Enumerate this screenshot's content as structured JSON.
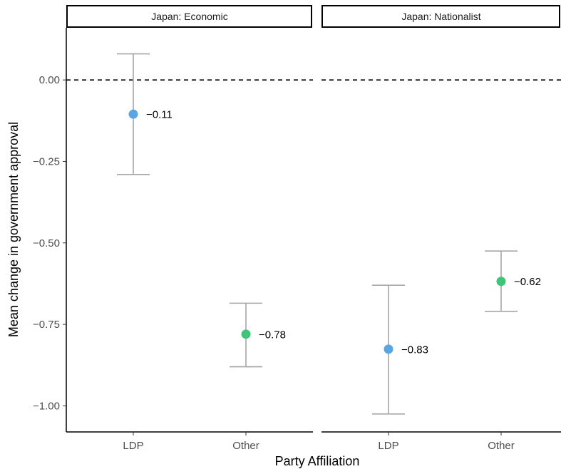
{
  "chart_data": {
    "type": "scatter",
    "subtype": "point-with-errorbars",
    "xlabel": "Party Affiliation",
    "ylabel": "Mean change in government approval",
    "ylim": [
      -1.08,
      0.16
    ],
    "yticks": [
      {
        "value": 0.0,
        "label": "0.00"
      },
      {
        "value": -0.25,
        "label": "-0.25"
      },
      {
        "value": -0.5,
        "label": "-0.50"
      },
      {
        "value": -0.75,
        "label": "-0.75"
      },
      {
        "value": -1.0,
        "label": "-1.00"
      }
    ],
    "reference_line": {
      "y": 0,
      "style": "dashed"
    },
    "grid": false,
    "colors": {
      "LDP": "#5aa5e3",
      "Other": "#3fc47a",
      "errorbar": "#a6a6a6"
    },
    "panels": [
      {
        "title": "Japan: Economic",
        "categories": [
          "LDP",
          "Other"
        ],
        "points": [
          {
            "category": "LDP",
            "mean": -0.105,
            "lower": -0.29,
            "upper": 0.08,
            "label": "−0.11"
          },
          {
            "category": "Other",
            "mean": -0.78,
            "lower": -0.88,
            "upper": -0.685,
            "label": "−0.78"
          }
        ]
      },
      {
        "title": "Japan: Nationalist",
        "categories": [
          "LDP",
          "Other"
        ],
        "points": [
          {
            "category": "LDP",
            "mean": -0.826,
            "lower": -1.025,
            "upper": -0.63,
            "label": "−0.83"
          },
          {
            "category": "Other",
            "mean": -0.618,
            "lower": -0.71,
            "upper": -0.525,
            "label": "−0.62"
          }
        ]
      }
    ]
  }
}
